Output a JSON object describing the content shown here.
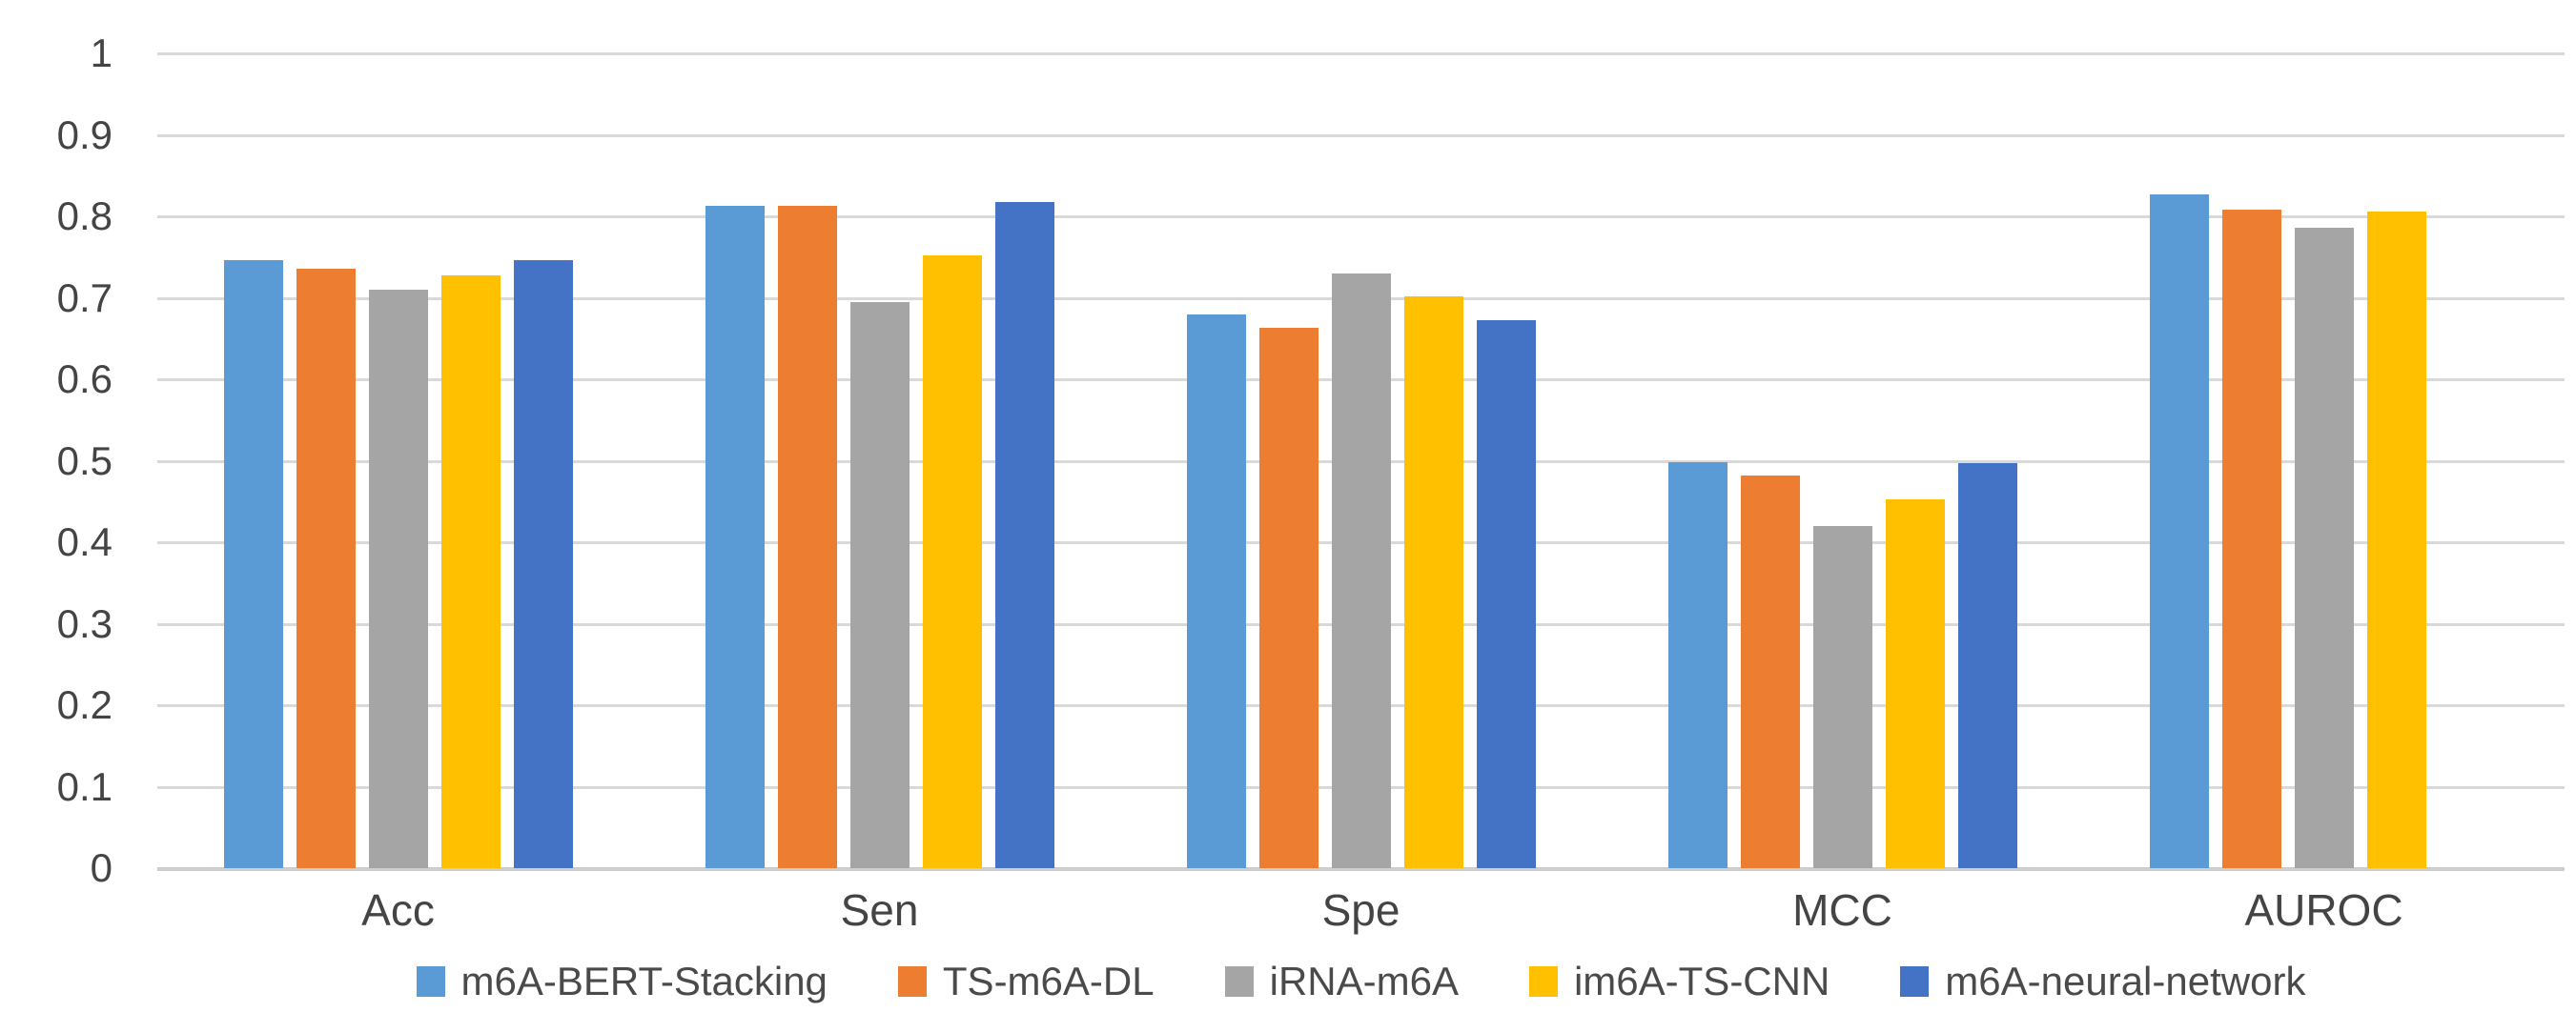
{
  "chart_data": {
    "type": "bar",
    "title": "",
    "xlabel": "",
    "ylabel": "",
    "categories": [
      "Acc",
      "Sen",
      "Spe",
      "MCC",
      "AUROC"
    ],
    "series": [
      {
        "name": "m6A-BERT-Stacking",
        "color": "#5B9BD5",
        "values": [
          0.746,
          0.813,
          0.68,
          0.498,
          0.827
        ]
      },
      {
        "name": "TS-m6A-DL",
        "color": "#ED7D31",
        "values": [
          0.736,
          0.813,
          0.663,
          0.482,
          0.808
        ]
      },
      {
        "name": "iRNA-m6A",
        "color": "#A5A5A5",
        "values": [
          0.71,
          0.695,
          0.73,
          0.42,
          0.786
        ]
      },
      {
        "name": "im6A-TS-CNN",
        "color": "#FFC000",
        "values": [
          0.727,
          0.752,
          0.702,
          0.453,
          0.806
        ]
      },
      {
        "name": "m6A-neural-network",
        "color": "#4472C4",
        "values": [
          0.746,
          0.818,
          0.673,
          0.497,
          null
        ]
      }
    ],
    "ylim": [
      0,
      1
    ],
    "yticks": [
      0,
      0.1,
      0.2,
      0.3,
      0.4,
      0.5,
      0.6,
      0.7,
      0.8,
      0.9,
      1
    ],
    "ytick_labels": [
      "0",
      "0.1",
      "0.2",
      "0.3",
      "0.4",
      "0.5",
      "0.6",
      "0.7",
      "0.8",
      "0.9",
      "1"
    ],
    "grid": true,
    "legend_position": "bottom"
  },
  "colors": {
    "gridline": "#D9D9D9",
    "axis_line": "#CDCDCD",
    "text": "#444444",
    "background": "#FFFFFF"
  }
}
